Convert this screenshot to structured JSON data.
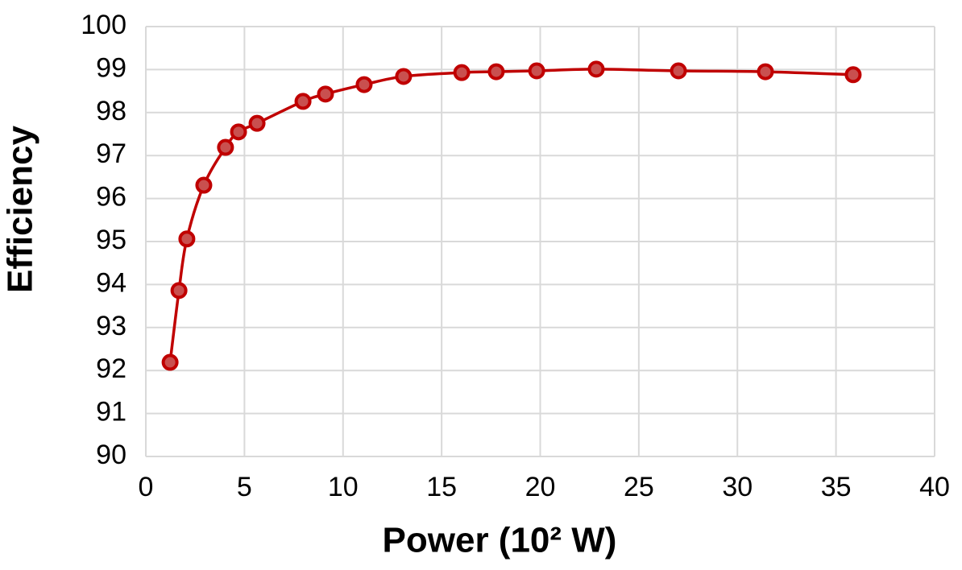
{
  "chart_data": {
    "type": "line",
    "x_label": "Power (10² W)",
    "y_label": "Efficiency",
    "series": [
      {
        "name": "Efficiency",
        "color": "#c00000",
        "x": [
          1.23,
          1.68,
          2.08,
          2.94,
          4.04,
          4.7,
          5.64,
          7.97,
          9.11,
          11.07,
          13.07,
          16.02,
          17.77,
          19.82,
          22.84,
          27.01,
          31.42,
          35.87
        ],
        "values": [
          92.19,
          93.86,
          95.06,
          96.31,
          97.19,
          97.55,
          97.75,
          98.26,
          98.43,
          98.65,
          98.84,
          98.93,
          98.95,
          98.97,
          99.01,
          98.97,
          98.95,
          98.88
        ]
      }
    ],
    "xlim": [
      0,
      40
    ],
    "xticks": [
      0,
      5,
      10,
      15,
      20,
      25,
      30,
      35,
      40
    ],
    "ylim": [
      90,
      100
    ],
    "yticks": [
      90,
      91,
      92,
      93,
      94,
      95,
      96,
      97,
      98,
      99,
      100
    ],
    "grid": true,
    "markers": true
  }
}
